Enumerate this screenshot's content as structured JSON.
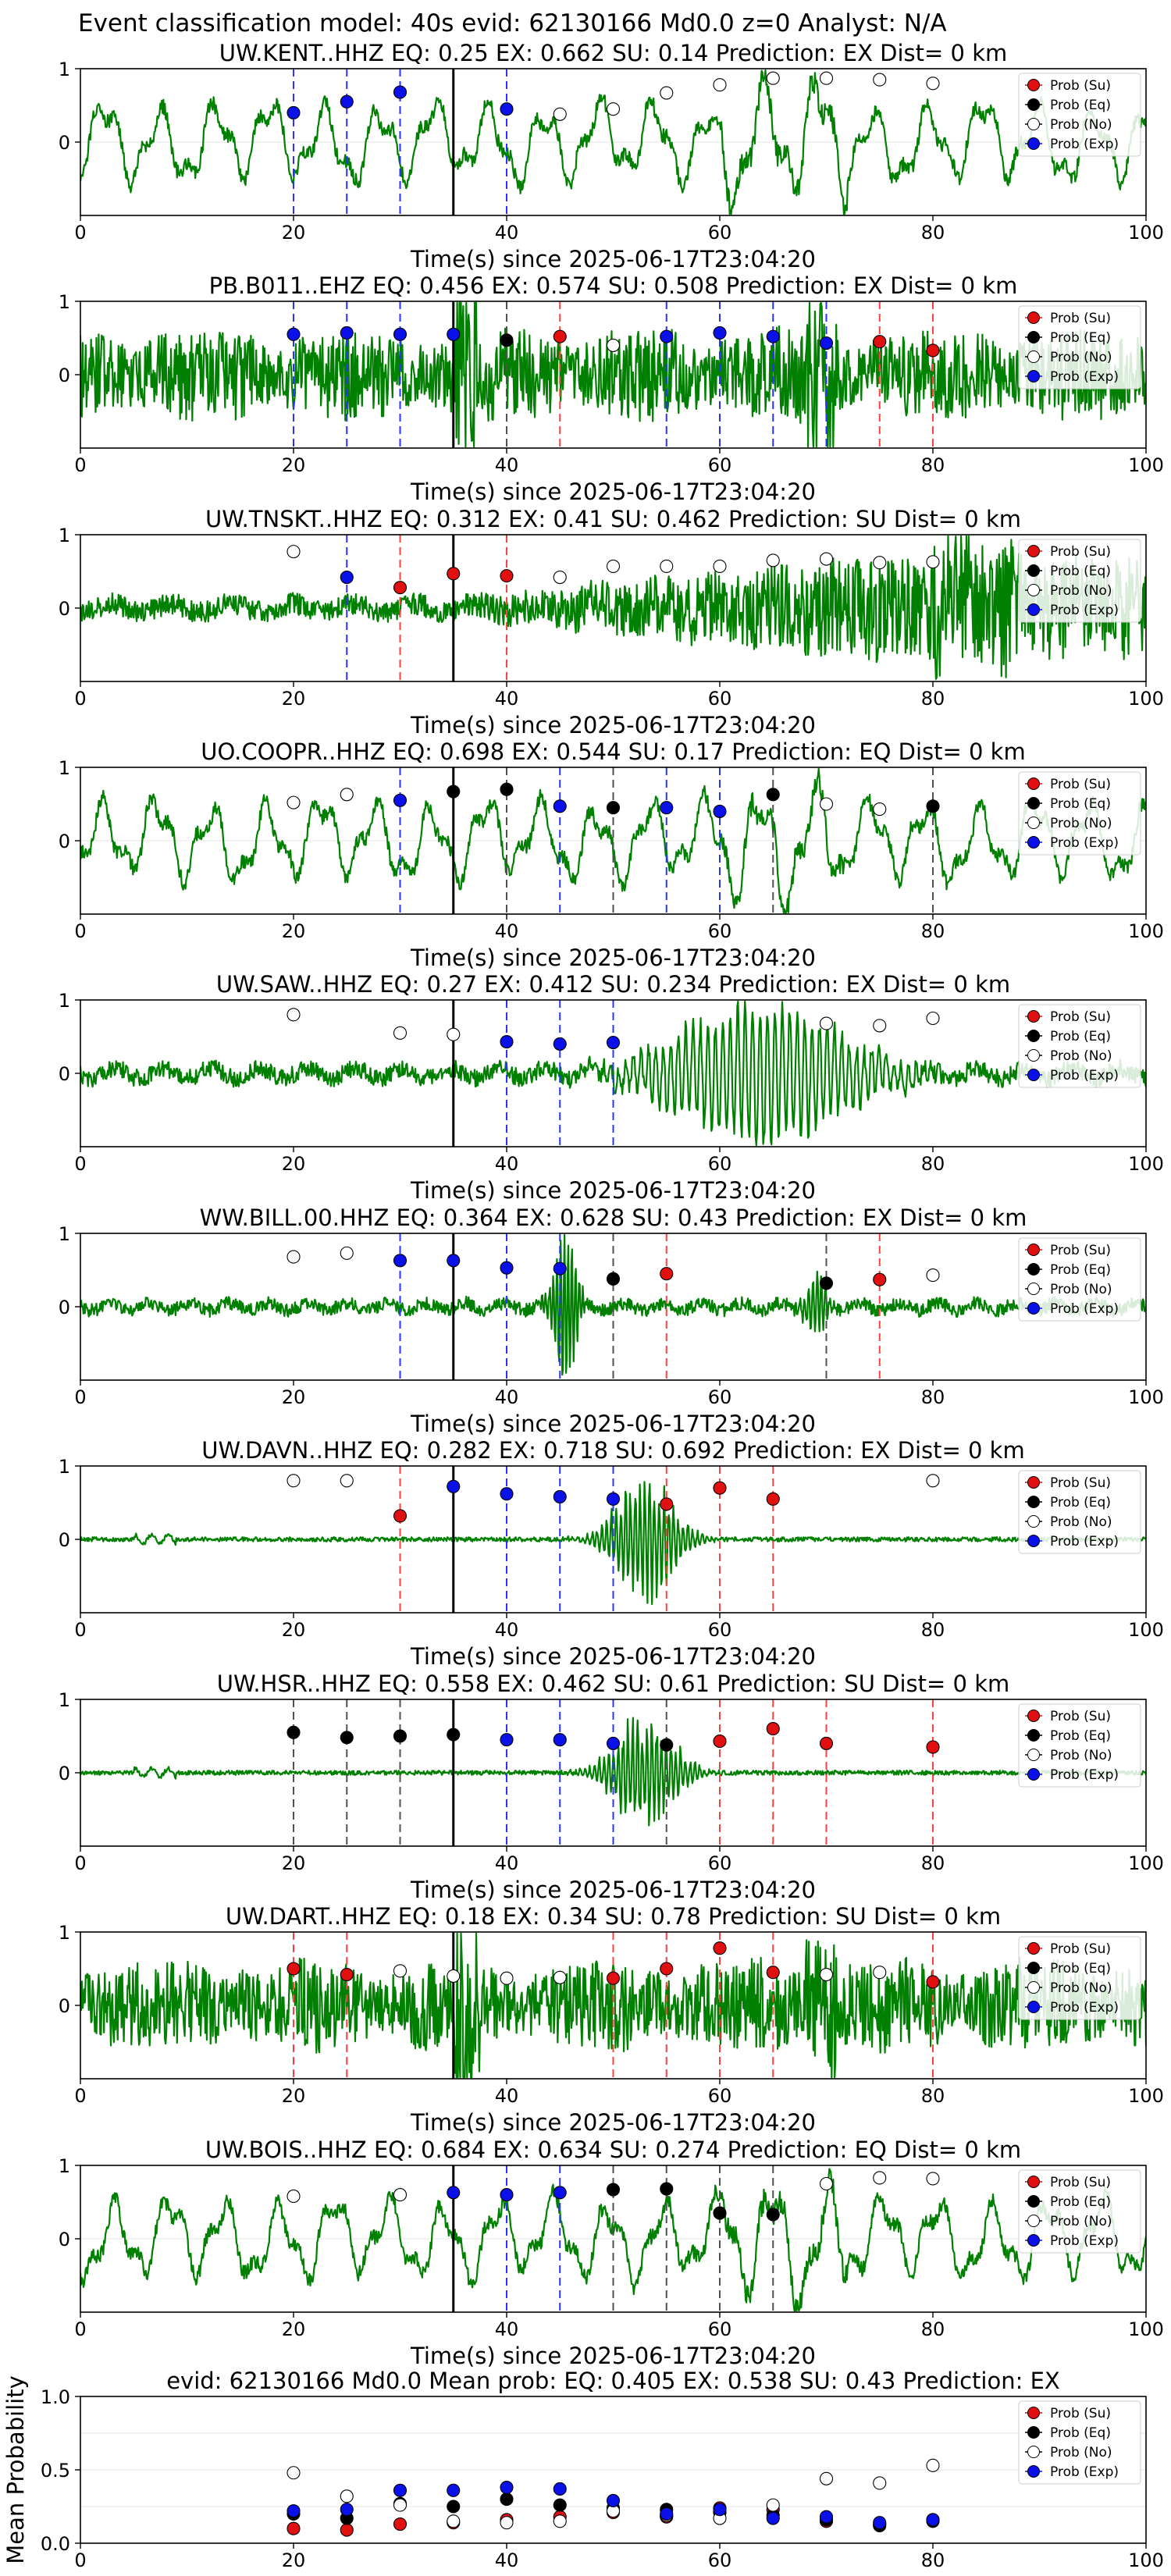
{
  "figure": {
    "title": "Event classification model: 40s evid: 62130166 Md0.0 z=0 Analyst: N/A"
  },
  "colors": {
    "trace": "#008000",
    "Su": "#e01010",
    "Eq": "#000000",
    "No": "#ffffff",
    "Exp": "#0a10e8",
    "origin": "#000000"
  },
  "legend": [
    {
      "key": "Su",
      "label": "Prob (Su)"
    },
    {
      "key": "Eq",
      "label": "Prob (Eq)"
    },
    {
      "key": "No",
      "label": "Prob (No)"
    },
    {
      "key": "Exp",
      "label": "Prob (Exp)"
    }
  ],
  "chart_data": [
    {
      "type": "scatter",
      "title": "UW.KENT..HHZ   EQ: 0.25  EX: 0.662  SU: 0.14   Prediction: EX    Dist= 0 km",
      "xlabel": "Time(s) since 2025-06-17T23:04:20",
      "ylabel": "",
      "xlim": [
        0,
        100
      ],
      "ylim": [
        -1,
        1
      ],
      "xticks": [
        0,
        20,
        40,
        60,
        80,
        100
      ],
      "yticks": [
        0,
        1
      ],
      "origin_time": 35,
      "trace_style": "long_period",
      "points": [
        {
          "t": 20,
          "cls": "Exp",
          "p": 0.4
        },
        {
          "t": 25,
          "cls": "Exp",
          "p": 0.55
        },
        {
          "t": 30,
          "cls": "Exp",
          "p": 0.68
        },
        {
          "t": 40,
          "cls": "Exp",
          "p": 0.45
        },
        {
          "t": 45,
          "cls": "No",
          "p": 0.38
        },
        {
          "t": 50,
          "cls": "No",
          "p": 0.45
        },
        {
          "t": 55,
          "cls": "No",
          "p": 0.67
        },
        {
          "t": 60,
          "cls": "No",
          "p": 0.78
        },
        {
          "t": 65,
          "cls": "No",
          "p": 0.87
        },
        {
          "t": 70,
          "cls": "No",
          "p": 0.87
        },
        {
          "t": 75,
          "cls": "No",
          "p": 0.85
        },
        {
          "t": 80,
          "cls": "No",
          "p": 0.8
        }
      ]
    },
    {
      "type": "scatter",
      "title": "PB.B011..EHZ   EQ: 0.456  EX: 0.574  SU: 0.508   Prediction: EX    Dist= 0 km",
      "xlabel": "Time(s) since 2025-06-17T23:04:20",
      "ylabel": "",
      "xlim": [
        0,
        100
      ],
      "ylim": [
        -1,
        1
      ],
      "xticks": [
        0,
        20,
        40,
        60,
        80,
        100
      ],
      "yticks": [
        0,
        1
      ],
      "origin_time": 35,
      "trace_style": "noisy",
      "points": [
        {
          "t": 20,
          "cls": "Exp",
          "p": 0.55
        },
        {
          "t": 25,
          "cls": "Exp",
          "p": 0.57
        },
        {
          "t": 30,
          "cls": "Exp",
          "p": 0.55
        },
        {
          "t": 35,
          "cls": "Exp",
          "p": 0.55
        },
        {
          "t": 40,
          "cls": "Eq",
          "p": 0.47
        },
        {
          "t": 45,
          "cls": "Su",
          "p": 0.52
        },
        {
          "t": 50,
          "cls": "No",
          "p": 0.4
        },
        {
          "t": 55,
          "cls": "Exp",
          "p": 0.52
        },
        {
          "t": 60,
          "cls": "Exp",
          "p": 0.57
        },
        {
          "t": 65,
          "cls": "Exp",
          "p": 0.52
        },
        {
          "t": 70,
          "cls": "Exp",
          "p": 0.43
        },
        {
          "t": 75,
          "cls": "Su",
          "p": 0.45
        },
        {
          "t": 80,
          "cls": "Su",
          "p": 0.33
        }
      ]
    },
    {
      "type": "scatter",
      "title": "UW.TNSKT..HHZ   EQ: 0.312  EX: 0.41  SU: 0.462   Prediction: SU    Dist= 0 km",
      "xlabel": "Time(s) since 2025-06-17T23:04:20",
      "ylabel": "",
      "xlim": [
        0,
        100
      ],
      "ylim": [
        -1,
        1
      ],
      "xticks": [
        0,
        20,
        40,
        60,
        80,
        100
      ],
      "yticks": [
        0,
        1
      ],
      "origin_time": 35,
      "trace_style": "growing_noise",
      "points": [
        {
          "t": 20,
          "cls": "No",
          "p": 0.77
        },
        {
          "t": 25,
          "cls": "Exp",
          "p": 0.42
        },
        {
          "t": 30,
          "cls": "Su",
          "p": 0.28
        },
        {
          "t": 35,
          "cls": "Su",
          "p": 0.47
        },
        {
          "t": 40,
          "cls": "Su",
          "p": 0.44
        },
        {
          "t": 45,
          "cls": "No",
          "p": 0.42
        },
        {
          "t": 50,
          "cls": "No",
          "p": 0.57
        },
        {
          "t": 55,
          "cls": "No",
          "p": 0.57
        },
        {
          "t": 60,
          "cls": "No",
          "p": 0.57
        },
        {
          "t": 65,
          "cls": "No",
          "p": 0.65
        },
        {
          "t": 70,
          "cls": "No",
          "p": 0.67
        },
        {
          "t": 75,
          "cls": "No",
          "p": 0.62
        },
        {
          "t": 80,
          "cls": "No",
          "p": 0.63
        }
      ]
    },
    {
      "type": "scatter",
      "title": "UO.COOPR..HHZ   EQ: 0.698  EX: 0.544  SU: 0.17   Prediction: EQ    Dist= 0 km",
      "xlabel": "Time(s) since 2025-06-17T23:04:20",
      "ylabel": "",
      "xlim": [
        0,
        100
      ],
      "ylim": [
        -1,
        1
      ],
      "xticks": [
        0,
        20,
        40,
        60,
        80,
        100
      ],
      "yticks": [
        0,
        1
      ],
      "origin_time": 35,
      "trace_style": "long_period",
      "points": [
        {
          "t": 20,
          "cls": "No",
          "p": 0.52
        },
        {
          "t": 25,
          "cls": "No",
          "p": 0.63
        },
        {
          "t": 30,
          "cls": "Exp",
          "p": 0.55
        },
        {
          "t": 35,
          "cls": "Eq",
          "p": 0.67
        },
        {
          "t": 40,
          "cls": "Eq",
          "p": 0.7
        },
        {
          "t": 45,
          "cls": "Exp",
          "p": 0.47
        },
        {
          "t": 50,
          "cls": "Eq",
          "p": 0.45
        },
        {
          "t": 55,
          "cls": "Exp",
          "p": 0.45
        },
        {
          "t": 60,
          "cls": "Exp",
          "p": 0.4
        },
        {
          "t": 65,
          "cls": "Eq",
          "p": 0.63
        },
        {
          "t": 70,
          "cls": "No",
          "p": 0.5
        },
        {
          "t": 75,
          "cls": "No",
          "p": 0.43
        },
        {
          "t": 80,
          "cls": "Eq",
          "p": 0.47
        }
      ]
    },
    {
      "type": "scatter",
      "title": "UW.SAW..HHZ   EQ: 0.27  EX: 0.412  SU: 0.234   Prediction: EX    Dist= 0 km",
      "xlabel": "Time(s) since 2025-06-17T23:04:20",
      "ylabel": "",
      "xlim": [
        0,
        100
      ],
      "ylim": [
        -1,
        1
      ],
      "xticks": [
        0,
        20,
        40,
        60,
        80,
        100
      ],
      "yticks": [
        0,
        1
      ],
      "origin_time": 35,
      "trace_style": "burst",
      "points": [
        {
          "t": 20,
          "cls": "No",
          "p": 0.8
        },
        {
          "t": 30,
          "cls": "No",
          "p": 0.55
        },
        {
          "t": 35,
          "cls": "No",
          "p": 0.53
        },
        {
          "t": 40,
          "cls": "Exp",
          "p": 0.43
        },
        {
          "t": 45,
          "cls": "Exp",
          "p": 0.4
        },
        {
          "t": 50,
          "cls": "Exp",
          "p": 0.42
        },
        {
          "t": 70,
          "cls": "No",
          "p": 0.68
        },
        {
          "t": 75,
          "cls": "No",
          "p": 0.65
        },
        {
          "t": 80,
          "cls": "No",
          "p": 0.75
        }
      ]
    },
    {
      "type": "scatter",
      "title": "WW.BILL.00.HHZ   EQ: 0.364  EX: 0.628  SU: 0.43   Prediction: EX    Dist= 0 km",
      "xlabel": "Time(s) since 2025-06-17T23:04:20",
      "ylabel": "",
      "xlim": [
        0,
        100
      ],
      "ylim": [
        -1,
        1
      ],
      "xticks": [
        0,
        20,
        40,
        60,
        80,
        100
      ],
      "yticks": [
        0,
        1
      ],
      "origin_time": 35,
      "trace_style": "spiky",
      "points": [
        {
          "t": 20,
          "cls": "No",
          "p": 0.68
        },
        {
          "t": 25,
          "cls": "No",
          "p": 0.73
        },
        {
          "t": 30,
          "cls": "Exp",
          "p": 0.63
        },
        {
          "t": 35,
          "cls": "Exp",
          "p": 0.63
        },
        {
          "t": 40,
          "cls": "Exp",
          "p": 0.53
        },
        {
          "t": 45,
          "cls": "Exp",
          "p": 0.52
        },
        {
          "t": 50,
          "cls": "Eq",
          "p": 0.38
        },
        {
          "t": 55,
          "cls": "Su",
          "p": 0.45
        },
        {
          "t": 70,
          "cls": "Eq",
          "p": 0.32
        },
        {
          "t": 75,
          "cls": "Su",
          "p": 0.37
        },
        {
          "t": 80,
          "cls": "No",
          "p": 0.43
        }
      ]
    },
    {
      "type": "scatter",
      "title": "UW.DAVN..HHZ   EQ: 0.282  EX: 0.718  SU: 0.692   Prediction: EX    Dist= 0 km",
      "xlabel": "Time(s) since 2025-06-17T23:04:20",
      "ylabel": "",
      "xlim": [
        0,
        100
      ],
      "ylim": [
        -1,
        1
      ],
      "xticks": [
        0,
        20,
        40,
        60,
        80,
        100
      ],
      "yticks": [
        0,
        1
      ],
      "origin_time": 35,
      "trace_style": "quiet_burst",
      "points": [
        {
          "t": 20,
          "cls": "No",
          "p": 0.8
        },
        {
          "t": 25,
          "cls": "No",
          "p": 0.8
        },
        {
          "t": 30,
          "cls": "Su",
          "p": 0.32
        },
        {
          "t": 35,
          "cls": "Exp",
          "p": 0.72
        },
        {
          "t": 40,
          "cls": "Exp",
          "p": 0.62
        },
        {
          "t": 45,
          "cls": "Exp",
          "p": 0.58
        },
        {
          "t": 50,
          "cls": "Exp",
          "p": 0.55
        },
        {
          "t": 55,
          "cls": "Su",
          "p": 0.48
        },
        {
          "t": 60,
          "cls": "Su",
          "p": 0.7
        },
        {
          "t": 65,
          "cls": "Su",
          "p": 0.55
        },
        {
          "t": 80,
          "cls": "No",
          "p": 0.8
        }
      ]
    },
    {
      "type": "scatter",
      "title": "UW.HSR..HHZ   EQ: 0.558  EX: 0.462  SU: 0.61   Prediction: SU    Dist= 0 km",
      "xlabel": "Time(s) since 2025-06-17T23:04:20",
      "ylabel": "",
      "xlim": [
        0,
        100
      ],
      "ylim": [
        -1,
        1
      ],
      "xticks": [
        0,
        20,
        40,
        60,
        80,
        100
      ],
      "yticks": [
        0,
        1
      ],
      "origin_time": 35,
      "trace_style": "quiet_burst",
      "points": [
        {
          "t": 20,
          "cls": "Eq",
          "p": 0.55
        },
        {
          "t": 25,
          "cls": "Eq",
          "p": 0.48
        },
        {
          "t": 30,
          "cls": "Eq",
          "p": 0.5
        },
        {
          "t": 35,
          "cls": "Eq",
          "p": 0.52
        },
        {
          "t": 40,
          "cls": "Exp",
          "p": 0.45
        },
        {
          "t": 45,
          "cls": "Exp",
          "p": 0.45
        },
        {
          "t": 50,
          "cls": "Exp",
          "p": 0.4
        },
        {
          "t": 55,
          "cls": "Eq",
          "p": 0.38
        },
        {
          "t": 60,
          "cls": "Su",
          "p": 0.43
        },
        {
          "t": 65,
          "cls": "Su",
          "p": 0.6
        },
        {
          "t": 70,
          "cls": "Su",
          "p": 0.4
        },
        {
          "t": 80,
          "cls": "Su",
          "p": 0.35
        }
      ]
    },
    {
      "type": "scatter",
      "title": "UW.DART..HHZ   EQ: 0.18  EX: 0.34  SU: 0.78   Prediction: SU    Dist= 0 km",
      "xlabel": "Time(s) since 2025-06-17T23:04:20",
      "ylabel": "",
      "xlim": [
        0,
        100
      ],
      "ylim": [
        -1,
        1
      ],
      "xticks": [
        0,
        20,
        40,
        60,
        80,
        100
      ],
      "yticks": [
        0,
        1
      ],
      "origin_time": 35,
      "trace_style": "noisy",
      "points": [
        {
          "t": 20,
          "cls": "Su",
          "p": 0.5
        },
        {
          "t": 25,
          "cls": "Su",
          "p": 0.42
        },
        {
          "t": 30,
          "cls": "No",
          "p": 0.47
        },
        {
          "t": 35,
          "cls": "No",
          "p": 0.4
        },
        {
          "t": 40,
          "cls": "No",
          "p": 0.37
        },
        {
          "t": 45,
          "cls": "No",
          "p": 0.38
        },
        {
          "t": 50,
          "cls": "Su",
          "p": 0.37
        },
        {
          "t": 55,
          "cls": "Su",
          "p": 0.5
        },
        {
          "t": 60,
          "cls": "Su",
          "p": 0.78
        },
        {
          "t": 65,
          "cls": "Su",
          "p": 0.45
        },
        {
          "t": 70,
          "cls": "No",
          "p": 0.42
        },
        {
          "t": 75,
          "cls": "No",
          "p": 0.45
        },
        {
          "t": 80,
          "cls": "Su",
          "p": 0.32
        }
      ]
    },
    {
      "type": "scatter",
      "title": "UW.BOIS..HHZ   EQ: 0.684  EX: 0.634  SU: 0.274   Prediction: EQ    Dist= 0 km",
      "xlabel": "Time(s) since 2025-06-17T23:04:20",
      "ylabel": "",
      "xlim": [
        0,
        100
      ],
      "ylim": [
        -1,
        1
      ],
      "xticks": [
        0,
        20,
        40,
        60,
        80,
        100
      ],
      "yticks": [
        0,
        1
      ],
      "origin_time": 35,
      "trace_style": "long_period",
      "points": [
        {
          "t": 20,
          "cls": "No",
          "p": 0.58
        },
        {
          "t": 30,
          "cls": "No",
          "p": 0.6
        },
        {
          "t": 35,
          "cls": "Exp",
          "p": 0.63
        },
        {
          "t": 40,
          "cls": "Exp",
          "p": 0.6
        },
        {
          "t": 45,
          "cls": "Exp",
          "p": 0.63
        },
        {
          "t": 50,
          "cls": "Eq",
          "p": 0.67
        },
        {
          "t": 55,
          "cls": "Eq",
          "p": 0.68
        },
        {
          "t": 60,
          "cls": "Eq",
          "p": 0.35
        },
        {
          "t": 65,
          "cls": "Eq",
          "p": 0.33
        },
        {
          "t": 70,
          "cls": "No",
          "p": 0.75
        },
        {
          "t": 75,
          "cls": "No",
          "p": 0.83
        },
        {
          "t": 80,
          "cls": "No",
          "p": 0.82
        }
      ]
    },
    {
      "type": "scatter",
      "title": "evid: 62130166  Md0.0   Mean prob:   EQ: 0.405  EX: 0.538  SU: 0.43   Prediction: EX",
      "xlabel": "",
      "ylabel": "Mean Probability",
      "xlim": [
        0,
        100
      ],
      "ylim": [
        0,
        1
      ],
      "xticks": [
        0,
        20,
        40,
        60,
        80,
        100
      ],
      "yticks": [
        0.0,
        0.5,
        1.0
      ],
      "ytick_labels": [
        "0.0",
        "0.5",
        "1.0"
      ],
      "series": [
        {
          "name": "Prob (Su)",
          "cls": "Su",
          "x": [
            20,
            25,
            30,
            35,
            40,
            45,
            50,
            55,
            60,
            65,
            70,
            75,
            80
          ],
          "y": [
            0.1,
            0.09,
            0.13,
            0.14,
            0.16,
            0.18,
            0.21,
            0.18,
            0.24,
            0.23,
            0.15,
            0.13,
            0.16
          ]
        },
        {
          "name": "Prob (Eq)",
          "cls": "Eq",
          "x": [
            20,
            25,
            30,
            35,
            40,
            45,
            50,
            55,
            60,
            65,
            70,
            75,
            80
          ],
          "y": [
            0.2,
            0.17,
            0.27,
            0.25,
            0.3,
            0.26,
            0.24,
            0.23,
            0.21,
            0.19,
            0.16,
            0.12,
            0.15
          ]
        },
        {
          "name": "Prob (No)",
          "cls": "No",
          "x": [
            20,
            25,
            30,
            35,
            40,
            45,
            50,
            55,
            60,
            65,
            70,
            75,
            80
          ],
          "y": [
            0.48,
            0.32,
            0.26,
            0.15,
            0.14,
            0.15,
            0.22,
            0.19,
            0.17,
            0.26,
            0.44,
            0.41,
            0.53
          ]
        },
        {
          "name": "Prob (Exp)",
          "cls": "Exp",
          "x": [
            20,
            25,
            30,
            35,
            40,
            45,
            50,
            55,
            60,
            65,
            70,
            75,
            80
          ],
          "y": [
            0.22,
            0.23,
            0.36,
            0.36,
            0.38,
            0.37,
            0.29,
            0.2,
            0.23,
            0.17,
            0.18,
            0.14,
            0.16
          ]
        }
      ]
    }
  ]
}
